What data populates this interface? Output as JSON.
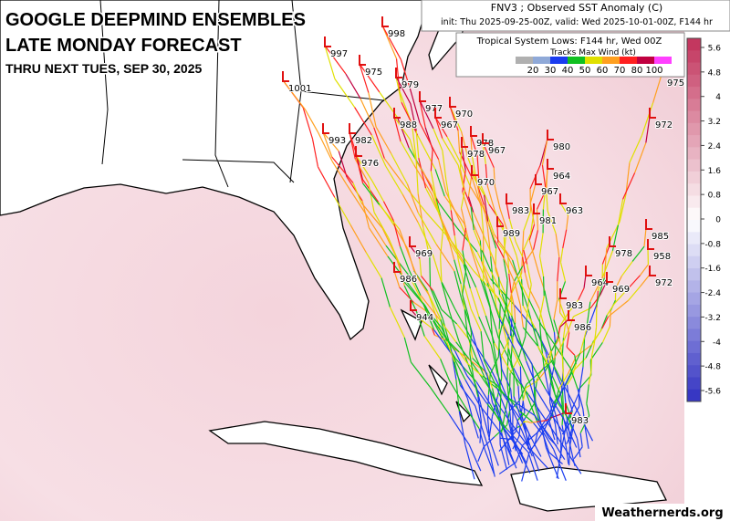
{
  "header": {
    "title_lines": [
      "GOOGLE DEEPMIND ENSEMBLES",
      "LATE MONDAY FORECAST",
      "THRU NEXT TUES, SEP 30, 2025"
    ]
  },
  "panel": {
    "title": "FNV3 ; Observed SST Anomaly (C)",
    "init": "init: Thu 2025-09-25-00Z, valid: Wed 2025-10-01-00Z, F144 hr",
    "lows": "Tropical System Lows: F144 hr, Wed 00Z",
    "wind_title": "Tracks Max Wind (kt)",
    "wind_ticks": [
      20,
      30,
      40,
      50,
      60,
      70,
      80,
      100
    ],
    "wind_colors": [
      "#b0b0b0",
      "#8fa9d8",
      "#1a3cf0",
      "#10c020",
      "#e0e000",
      "#ffa020",
      "#ff2020",
      "#c00040",
      "#ff40ff"
    ]
  },
  "colorbar": {
    "ticks": [
      5.6,
      4.8,
      4,
      3.2,
      2.4,
      1.6,
      0.8,
      0,
      -0.8,
      -1.6,
      -2.4,
      -3.2,
      -4,
      -4.8,
      -5.6
    ]
  },
  "lows": [
    998,
    997,
    975,
    1001,
    979,
    977,
    970,
    988,
    967,
    993,
    982,
    978,
    980,
    967,
    978,
    976,
    964,
    970,
    967,
    983,
    963,
    981,
    989,
    985,
    969,
    978,
    958,
    986,
    964,
    972,
    969,
    983,
    944,
    986,
    983,
    975,
    972
  ],
  "watermark": "Weathernerds.org"
}
